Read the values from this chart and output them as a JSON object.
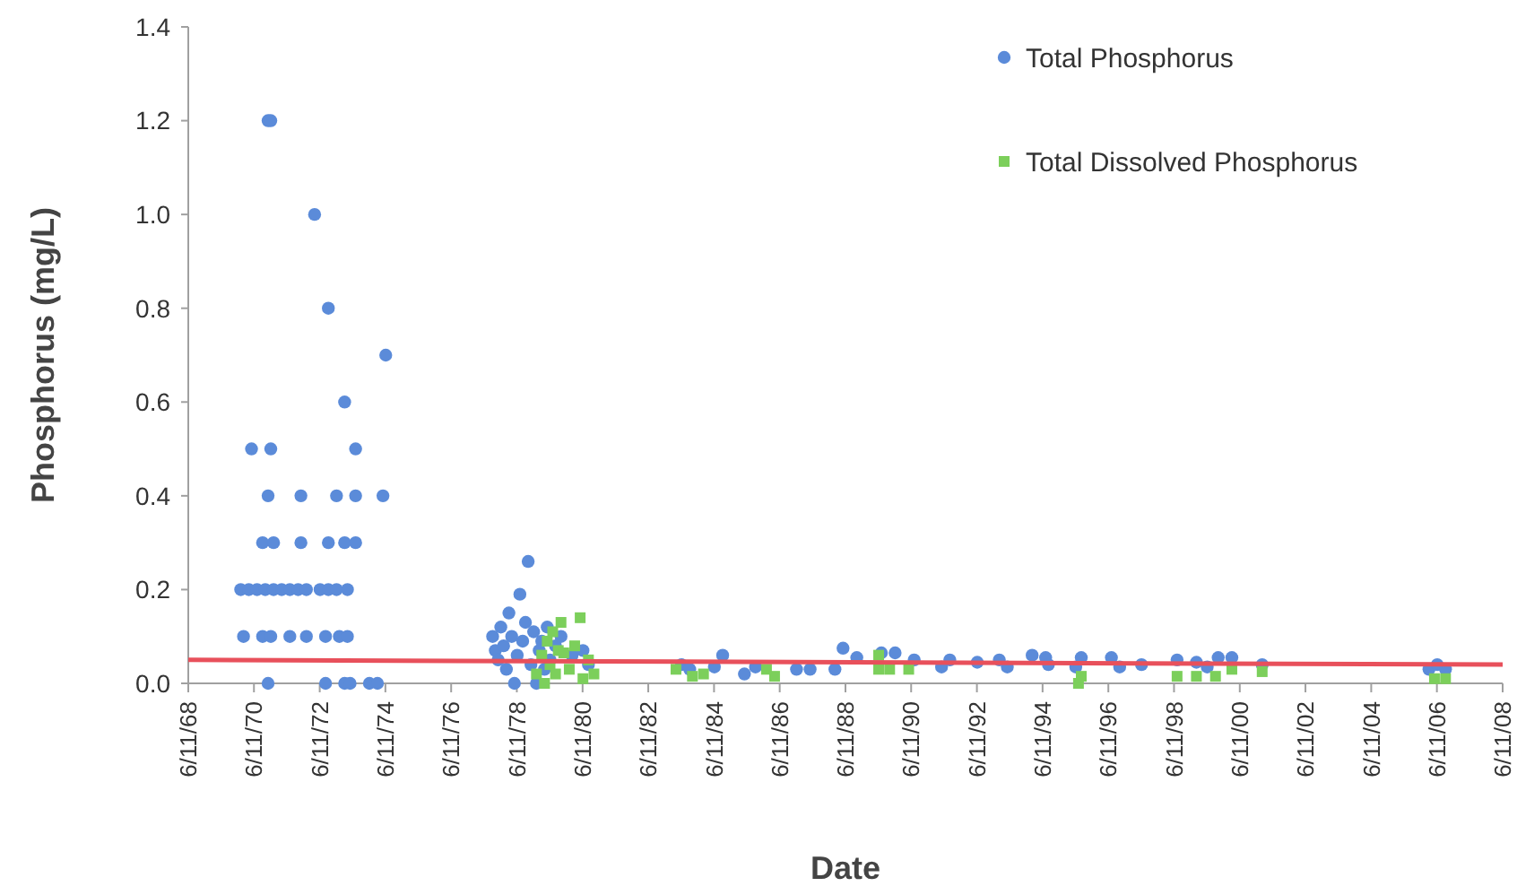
{
  "chart_data": {
    "type": "scatter",
    "xlabel": "Date",
    "ylabel": "Phosphorus (mg/L)",
    "legend": "top right",
    "grid": false,
    "xlim": [
      "1968-06-11",
      "2008-06-11"
    ],
    "xticks": [
      {
        "value": "1968-06-11",
        "label": "6/11/68"
      },
      {
        "value": "1970-06-11",
        "label": "6/11/70"
      },
      {
        "value": "1972-06-11",
        "label": "6/11/72"
      },
      {
        "value": "1974-06-11",
        "label": "6/11/74"
      },
      {
        "value": "1976-06-11",
        "label": "6/11/76"
      },
      {
        "value": "1978-06-11",
        "label": "6/11/78"
      },
      {
        "value": "1980-06-11",
        "label": "6/11/80"
      },
      {
        "value": "1982-06-11",
        "label": "6/11/82"
      },
      {
        "value": "1984-06-11",
        "label": "6/11/84"
      },
      {
        "value": "1986-06-11",
        "label": "6/11/86"
      },
      {
        "value": "1988-06-11",
        "label": "6/11/88"
      },
      {
        "value": "1990-06-11",
        "label": "6/11/90"
      },
      {
        "value": "1992-06-11",
        "label": "6/11/92"
      },
      {
        "value": "1994-06-11",
        "label": "6/11/94"
      },
      {
        "value": "1996-06-11",
        "label": "6/11/96"
      },
      {
        "value": "1998-06-11",
        "label": "6/11/98"
      },
      {
        "value": "2000-06-11",
        "label": "6/11/00"
      },
      {
        "value": "2002-06-11",
        "label": "6/11/02"
      },
      {
        "value": "2004-06-11",
        "label": "6/11/04"
      },
      {
        "value": "2006-06-11",
        "label": "6/11/06"
      },
      {
        "value": "2008-06-11",
        "label": "6/11/08"
      }
    ],
    "ylim": [
      0,
      1.4
    ],
    "yticks": [
      {
        "value": 0,
        "label": "0.0"
      },
      {
        "value": 0.2,
        "label": "0.2"
      },
      {
        "value": 0.4,
        "label": "0.4"
      },
      {
        "value": 0.6,
        "label": "0.6"
      },
      {
        "value": 0.8,
        "label": "0.8"
      },
      {
        "value": 1,
        "label": "1.0"
      },
      {
        "value": 1.2,
        "label": "1.2"
      },
      {
        "value": 1.4,
        "label": "1.4"
      }
    ],
    "series": [
      {
        "name": "Total Phosphorus",
        "color": "#5b8bd9",
        "marker": "circle",
        "x": [
          "1970-11",
          "1970-12",
          "1972-04",
          "1972-09",
          "1974-06",
          "1973-03",
          "1970-05",
          "1970-12",
          "1973-07",
          "1970-11",
          "1971-11",
          "1972-12",
          "1973-07",
          "1974-05",
          "1970-09",
          "1971-01",
          "1971-11",
          "1972-09",
          "1973-03",
          "1973-07",
          "1970-01",
          "1970-04",
          "1970-07",
          "1970-10",
          "1971-01",
          "1971-04",
          "1971-07",
          "1971-10",
          "1972-01",
          "1972-06",
          "1972-09",
          "1972-12",
          "1973-04",
          "1970-02",
          "1970-09",
          "1970-12",
          "1971-07",
          "1972-01",
          "1972-08",
          "1973-01",
          "1973-04",
          "1970-11",
          "1972-08",
          "1973-03",
          "1973-05",
          "1973-12",
          "1974-03",
          "1977-09",
          "1977-10",
          "1977-11",
          "1977-12",
          "1978-01",
          "1978-02",
          "1978-03",
          "1978-04",
          "1978-05",
          "1978-06",
          "1978-07",
          "1978-08",
          "1978-09",
          "1978-10",
          "1978-11",
          "1978-12",
          "1979-01",
          "1979-02",
          "1979-03",
          "1979-04",
          "1979-05",
          "1979-06",
          "1979-08",
          "1979-10",
          "1980-02",
          "1980-06",
          "1980-08",
          "1983-06",
          "1983-09",
          "1984-09",
          "1984-06",
          "1985-05",
          "1985-09",
          "1986-12",
          "1987-05",
          "1988-02",
          "1988-05",
          "1988-10",
          "1989-07",
          "1989-12",
          "1990-07",
          "1991-05",
          "1991-08",
          "1992-06",
          "1993-02",
          "1993-05",
          "1994-02",
          "1994-07",
          "1994-08",
          "1995-06",
          "1995-08",
          "1996-07",
          "1996-10",
          "1997-06",
          "1998-07",
          "1999-02",
          "1999-06",
          "1999-10",
          "2000-03",
          "2001-02",
          "2006-03",
          "2006-06",
          "2006-09"
        ],
        "values": [
          1.2,
          1.2,
          1.0,
          0.8,
          0.7,
          0.6,
          0.5,
          0.5,
          0.5,
          0.4,
          0.4,
          0.4,
          0.4,
          0.4,
          0.3,
          0.3,
          0.3,
          0.3,
          0.3,
          0.3,
          0.2,
          0.2,
          0.2,
          0.2,
          0.2,
          0.2,
          0.2,
          0.2,
          0.2,
          0.2,
          0.2,
          0.2,
          0.2,
          0.1,
          0.1,
          0.1,
          0.1,
          0.1,
          0.1,
          0.1,
          0.1,
          0,
          0,
          0,
          0,
          0,
          0,
          0.1,
          0.07,
          0.05,
          0.12,
          0.08,
          0.03,
          0.15,
          0.1,
          0,
          0.06,
          0.19,
          0.09,
          0.13,
          0.26,
          0.04,
          0.11,
          0,
          0.07,
          0.09,
          0.03,
          0.12,
          0.05,
          0.08,
          0.1,
          0.06,
          0.07,
          0.04,
          0.04,
          0.03,
          0.06,
          0.035,
          0.02,
          0.035,
          0.03,
          0.03,
          0.03,
          0.075,
          0.055,
          0.065,
          0.065,
          0.05,
          0.035,
          0.05,
          0.045,
          0.05,
          0.035,
          0.06,
          0.055,
          0.04,
          0.035,
          0.055,
          0.055,
          0.035,
          0.04,
          0.05,
          0.045,
          0.035,
          0.055,
          0.055,
          0.04,
          0.03,
          0.04,
          0.03
        ]
      },
      {
        "name": "Total Dissolved Phosphorus",
        "color": "#7ccf5b",
        "marker": "square",
        "x": [
          "1979-01",
          "1979-03",
          "1979-04",
          "1979-05",
          "1979-06",
          "1979-07",
          "1979-08",
          "1979-09",
          "1979-10",
          "1979-11",
          "1980-01",
          "1980-03",
          "1980-05",
          "1980-06",
          "1980-08",
          "1980-10",
          "1984-02",
          "1983-04",
          "1983-10",
          "1986-01",
          "1986-04",
          "1989-06",
          "1989-06",
          "1989-10",
          "1990-05",
          "1995-07",
          "1995-08",
          "1998-07",
          "1999-02",
          "1999-09",
          "2000-03",
          "2001-02",
          "2006-05",
          "2006-09"
        ],
        "values": [
          0.02,
          0.06,
          0,
          0.09,
          0.04,
          0.11,
          0.02,
          0.07,
          0.13,
          0.065,
          0.03,
          0.08,
          0.14,
          0.01,
          0.05,
          0.02,
          0.02,
          0.03,
          0.015,
          0.03,
          0.015,
          0.06,
          0.03,
          0.03,
          0.03,
          0,
          0.015,
          0.015,
          0.015,
          0.015,
          0.03,
          0.025,
          0.01,
          0.01
        ]
      },
      {
        "type": "line",
        "color": "#e8505b",
        "x": [
          "1968-06-11",
          "2008-06-11"
        ],
        "values": [
          0.05,
          0.04
        ]
      }
    ]
  }
}
